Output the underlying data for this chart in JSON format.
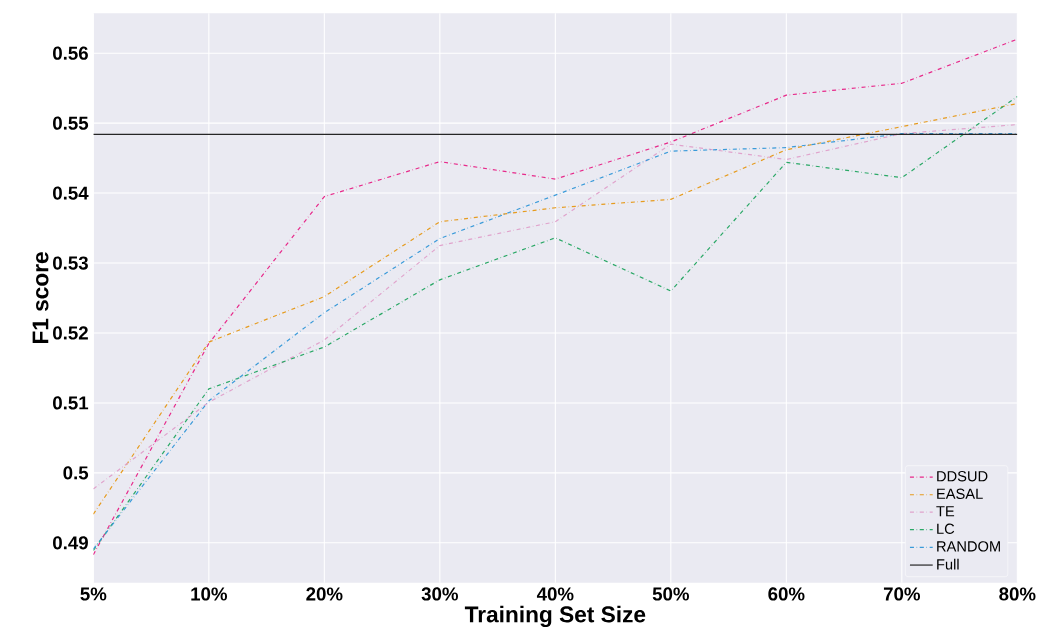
{
  "chart_data": {
    "type": "line",
    "xlabel": "Training Set Size",
    "ylabel": "F1 score",
    "categories": [
      "5%",
      "10%",
      "20%",
      "30%",
      "40%",
      "50%",
      "60%",
      "70%",
      "80%"
    ],
    "series": [
      {
        "name": "DDSUD",
        "color": "#e7298a",
        "line_style": "dashdot",
        "values": [
          0.4883,
          0.5185,
          0.5395,
          0.5445,
          0.542,
          0.5473,
          0.554,
          0.5557,
          0.562
        ]
      },
      {
        "name": "EASAL",
        "color": "#e69b1e",
        "line_style": "dashdot",
        "values": [
          0.4941,
          0.5187,
          0.5252,
          0.5359,
          0.5379,
          0.5391,
          0.5462,
          0.5495,
          0.5528
        ]
      },
      {
        "name": "TE",
        "color": "#e0a3cc",
        "line_style": "dashdot",
        "values": [
          0.4977,
          0.5101,
          0.519,
          0.5325,
          0.5359,
          0.547,
          0.5448,
          0.5485,
          0.5498
        ]
      },
      {
        "name": "LC",
        "color": "#2aa866",
        "line_style": "dashdot",
        "values": [
          0.4889,
          0.512,
          0.518,
          0.5276,
          0.5336,
          0.526,
          0.5444,
          0.5422,
          0.5538
        ]
      },
      {
        "name": "RANDOM",
        "color": "#3a9ad9",
        "line_style": "dashdot",
        "values": [
          0.4891,
          0.5103,
          0.5229,
          0.5335,
          0.5397,
          0.546,
          0.5465,
          0.5485,
          0.5485
        ]
      }
    ],
    "ref_lines": [
      {
        "axis": "y",
        "value": 0.5484,
        "label": "Full",
        "color": "#262626",
        "line_style": "solid"
      }
    ],
    "ylim": [
      0.4843,
      0.5657
    ],
    "yticks": [
      0.49,
      0.5,
      0.51,
      0.52,
      0.53,
      0.54,
      0.55,
      0.56
    ],
    "grid": true,
    "legend": "bottom right",
    "marker": "none"
  }
}
